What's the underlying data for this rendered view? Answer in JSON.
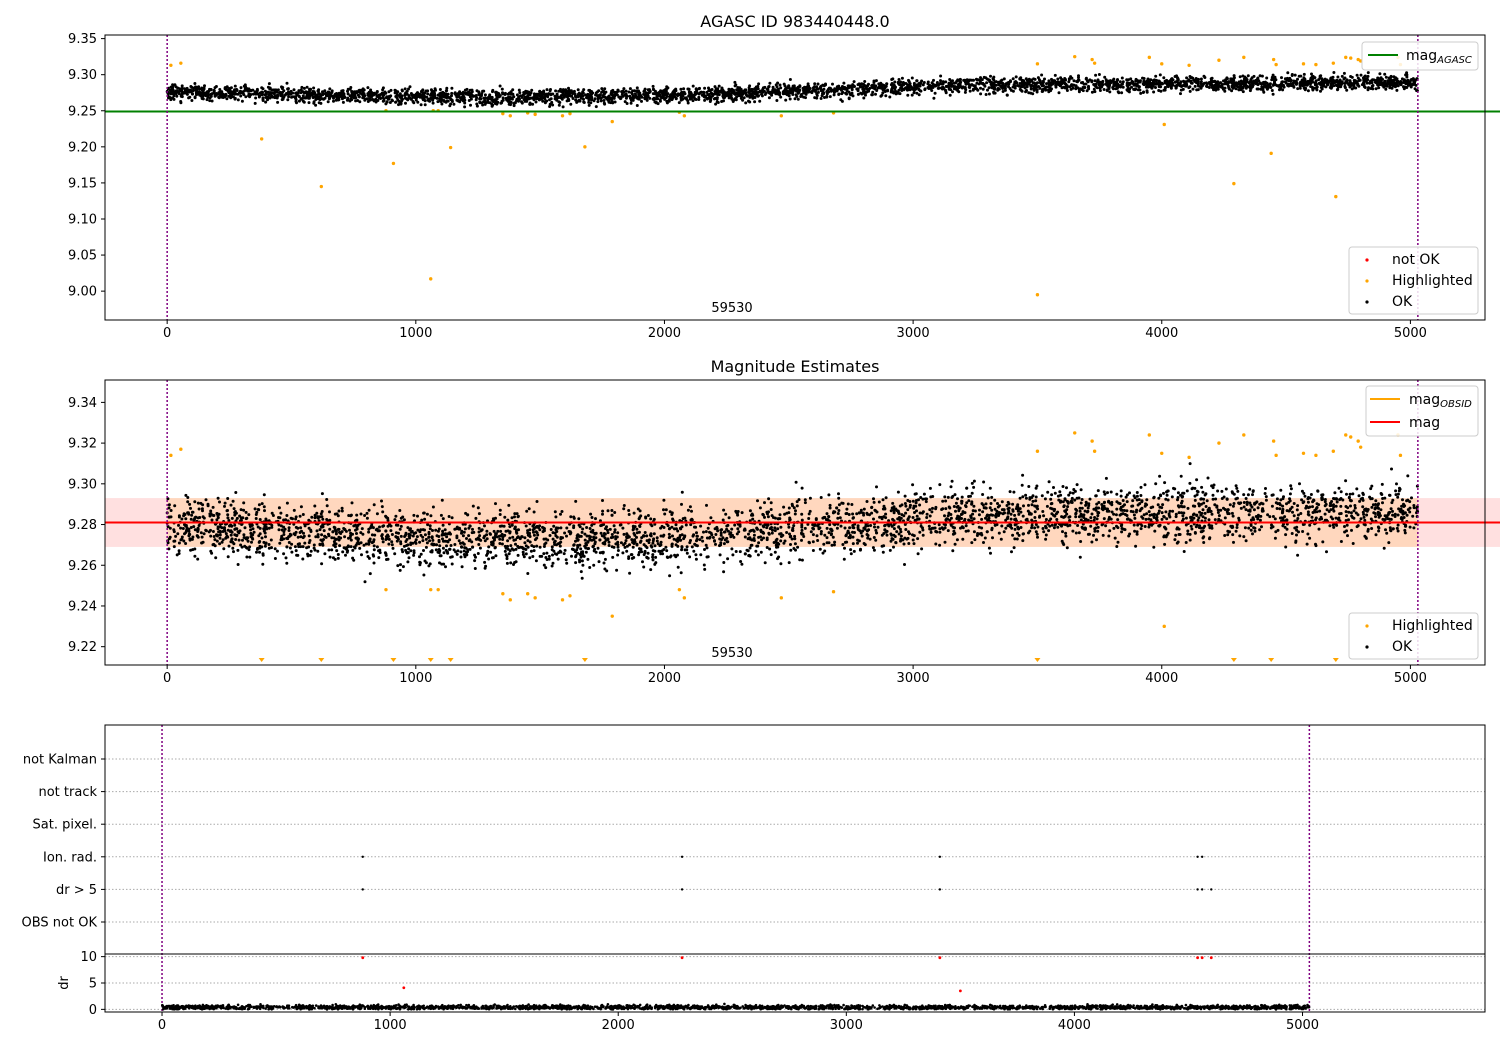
{
  "chart_data": [
    {
      "type": "scatter",
      "title": "AGASC ID 983440448.0",
      "annotation": "59530",
      "xlim": [
        -250,
        5300
      ],
      "ylim": [
        8.96,
        9.355
      ],
      "xticks": [
        0,
        1000,
        2000,
        3000,
        4000,
        5000
      ],
      "yticks": [
        9.0,
        9.05,
        9.1,
        9.15,
        9.2,
        9.25,
        9.3,
        9.35
      ],
      "ytick_labels": [
        "9.00",
        "9.05",
        "9.10",
        "9.15",
        "9.20",
        "9.25",
        "9.30",
        "9.35"
      ],
      "vlines": [
        0,
        5030
      ],
      "hline": {
        "name_main": "mag",
        "name_sub": "AGASC",
        "y": 9.249,
        "x": [
          -250,
          5300
        ],
        "color": "#008000"
      },
      "legend_lines": [
        {
          "name_main": "mag",
          "name_sub": "AGASC",
          "color": "#008000"
        }
      ],
      "legend_points": [
        {
          "name": "not OK",
          "color": "#ff0000"
        },
        {
          "name": "Highlighted",
          "color": "#ffa500"
        },
        {
          "name": "OK",
          "color": "#000000"
        }
      ],
      "ok_band": {
        "x": [
          0,
          5030
        ],
        "y_start": 9.277,
        "y_end": 9.29,
        "y_mid_dip": 9.272,
        "spread": 0.009
      },
      "highlighted": [
        [
          15,
          9.313
        ],
        [
          55,
          9.316
        ],
        [
          380,
          9.211
        ],
        [
          620,
          9.145
        ],
        [
          880,
          9.25
        ],
        [
          910,
          9.177
        ],
        [
          1060,
          9.017
        ],
        [
          1070,
          9.25
        ],
        [
          1090,
          9.25
        ],
        [
          1140,
          9.199
        ],
        [
          1350,
          9.246
        ],
        [
          1380,
          9.243
        ],
        [
          1450,
          9.247
        ],
        [
          1480,
          9.245
        ],
        [
          1590,
          9.243
        ],
        [
          1620,
          9.246
        ],
        [
          1680,
          9.2
        ],
        [
          1790,
          9.235
        ],
        [
          2060,
          9.248
        ],
        [
          2080,
          9.243
        ],
        [
          2470,
          9.243
        ],
        [
          2680,
          9.247
        ],
        [
          3500,
          9.315
        ],
        [
          3500,
          8.995
        ],
        [
          3650,
          9.325
        ],
        [
          3720,
          9.321
        ],
        [
          3730,
          9.316
        ],
        [
          3950,
          9.324
        ],
        [
          4000,
          9.315
        ],
        [
          4010,
          9.231
        ],
        [
          4110,
          9.313
        ],
        [
          4230,
          9.32
        ],
        [
          4290,
          9.149
        ],
        [
          4330,
          9.324
        ],
        [
          4440,
          9.191
        ],
        [
          4450,
          9.321
        ],
        [
          4460,
          9.314
        ],
        [
          4570,
          9.315
        ],
        [
          4620,
          9.314
        ],
        [
          4690,
          9.316
        ],
        [
          4700,
          9.131
        ],
        [
          4740,
          9.324
        ],
        [
          4760,
          9.323
        ],
        [
          4790,
          9.321
        ],
        [
          4800,
          9.319
        ],
        [
          4950,
          9.324
        ],
        [
          4960,
          9.314
        ]
      ]
    },
    {
      "type": "scatter",
      "title": "Magnitude Estimates",
      "annotation": "59530",
      "xlim": [
        -250,
        5300
      ],
      "ylim": [
        9.211,
        9.351
      ],
      "xticks": [
        0,
        1000,
        2000,
        3000,
        4000,
        5000
      ],
      "yticks": [
        9.22,
        9.24,
        9.26,
        9.28,
        9.3,
        9.32,
        9.34
      ],
      "ytick_labels": [
        "9.22",
        "9.24",
        "9.26",
        "9.28",
        "9.30",
        "9.32",
        "9.34"
      ],
      "vlines": [
        0,
        5030
      ],
      "mag_line": {
        "y": 9.281,
        "x": [
          -250,
          5300
        ],
        "color": "#ff0000"
      },
      "mag_band": {
        "y": [
          9.269,
          9.293
        ],
        "x": [
          -250,
          5300
        ],
        "color": "#ff0000"
      },
      "mag_obsid_band": {
        "y": [
          9.269,
          9.293
        ],
        "x": [
          0,
          5030
        ],
        "color": "#ffa500"
      },
      "legend_lines": [
        {
          "name_main": "mag",
          "name_sub": "OBSID",
          "color": "#ffa500"
        },
        {
          "name_main": "mag",
          "name_sub": "",
          "color": "#ff0000"
        }
      ],
      "legend_points": [
        {
          "name": "Highlighted",
          "color": "#ffa500"
        },
        {
          "name": "OK",
          "color": "#000000"
        }
      ],
      "ok_band": {
        "x": [
          0,
          5030
        ],
        "y_start": 9.28,
        "y_end": 9.287,
        "y_mid_dip": 9.274,
        "spread": 0.012
      },
      "highlighted": [
        [
          15,
          9.314
        ],
        [
          55,
          9.317
        ],
        [
          880,
          9.248
        ],
        [
          1060,
          9.248
        ],
        [
          1090,
          9.248
        ],
        [
          1350,
          9.246
        ],
        [
          1380,
          9.243
        ],
        [
          1450,
          9.246
        ],
        [
          1480,
          9.244
        ],
        [
          1590,
          9.243
        ],
        [
          1620,
          9.245
        ],
        [
          1790,
          9.235
        ],
        [
          2060,
          9.248
        ],
        [
          2080,
          9.244
        ],
        [
          2470,
          9.244
        ],
        [
          2680,
          9.247
        ],
        [
          3500,
          9.316
        ],
        [
          3650,
          9.325
        ],
        [
          3720,
          9.321
        ],
        [
          3730,
          9.316
        ],
        [
          3950,
          9.324
        ],
        [
          4000,
          9.315
        ],
        [
          4010,
          9.23
        ],
        [
          4110,
          9.313
        ],
        [
          4230,
          9.32
        ],
        [
          4330,
          9.324
        ],
        [
          4450,
          9.321
        ],
        [
          4460,
          9.314
        ],
        [
          4570,
          9.315
        ],
        [
          4620,
          9.314
        ],
        [
          4690,
          9.316
        ],
        [
          4740,
          9.324
        ],
        [
          4760,
          9.323
        ],
        [
          4790,
          9.321
        ],
        [
          4800,
          9.318
        ],
        [
          4950,
          9.324
        ],
        [
          4960,
          9.314
        ]
      ],
      "below_range_markers": [
        380,
        620,
        910,
        1060,
        1140,
        1680,
        3500,
        4290,
        4440,
        4700
      ]
    },
    {
      "type": "scatter",
      "title": "",
      "xlim": [
        -250,
        5800
      ],
      "xticks": [
        0,
        1000,
        2000,
        3000,
        4000,
        5000
      ],
      "vlines": [
        0,
        5030
      ],
      "flag_categories": [
        "not Kalman",
        "not track",
        "Sat. pixel.",
        "Ion. rad.",
        "dr > 5",
        "OBS not OK"
      ],
      "flag_points": {
        "Ion. rad.": [
          880,
          2280,
          3410,
          4540,
          4560
        ],
        "dr > 5": [
          880,
          2280,
          3410,
          4540,
          4560,
          4600
        ]
      },
      "dr_ylabel": "dr",
      "dr_ylim": [
        -0.5,
        10.5
      ],
      "dr_yticks": [
        0,
        5,
        10
      ],
      "dr_high_points": [
        [
          880,
          9.8
        ],
        [
          2280,
          9.8
        ],
        [
          3410,
          9.8
        ],
        [
          4540,
          9.8
        ],
        [
          4560,
          9.8
        ],
        [
          4600,
          9.8
        ],
        [
          1060,
          4.1
        ],
        [
          3500,
          3.5
        ]
      ],
      "dr_baseline": {
        "x": [
          0,
          5030
        ],
        "y": 0.4
      }
    }
  ]
}
